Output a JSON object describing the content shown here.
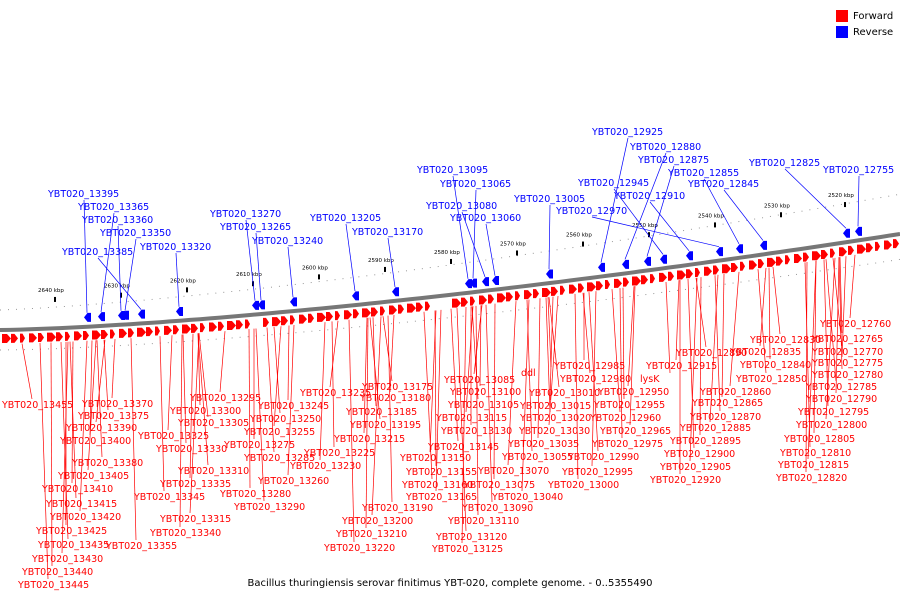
{
  "legend": {
    "forward_label": "Forward",
    "reverse_label": "Reverse",
    "forward_color": "#ff0000",
    "reverse_color": "#0000ff"
  },
  "caption": "Bacillus thuringiensis serovar finitimus YBT-020, complete genome. - 0..5355490",
  "scale": {
    "tick_labels": [
      "2640 kbp",
      "2630 kbp",
      "2620 kbp",
      "2610 kbp",
      "2600 kbp",
      "2590 kbp",
      "2580 kbp",
      "2570 kbp",
      "2560 kbp",
      "2550 kbp",
      "2540 kbp",
      "2530 kbp",
      "2520 kbp"
    ]
  },
  "reverse_labels": [
    "YBT020_13395",
    "YBT020_13365",
    "YBT020_13360",
    "YBT020_13350",
    "YBT020_13385",
    "YBT020_13320",
    "YBT020_13270",
    "YBT020_13265",
    "YBT020_13240",
    "YBT020_13205",
    "YBT020_13170",
    "YBT020_13095",
    "YBT020_13065",
    "YBT020_13080",
    "YBT020_13060",
    "YBT020_13005",
    "YBT020_12925",
    "YBT020_12880",
    "YBT020_12875",
    "YBT020_12945",
    "YBT020_12910",
    "YBT020_12970",
    "YBT020_12855",
    "YBT020_12845",
    "YBT020_12825",
    "YBT020_12755"
  ],
  "forward_labels": [
    "YBT020_13455",
    "YBT020_13370",
    "YBT020_13375",
    "YBT020_13390",
    "YBT020_13400",
    "YBT020_13380",
    "YBT020_13405",
    "YBT020_13410",
    "YBT020_13415",
    "YBT020_13420",
    "YBT020_13425",
    "YBT020_13435",
    "YBT020_13430",
    "YBT020_13440",
    "YBT020_13445",
    "YBT020_13295",
    "YBT020_13300",
    "YBT020_13305",
    "YBT020_13325",
    "YBT020_13330",
    "YBT020_13310",
    "YBT020_13335",
    "YBT020_13345",
    "YBT020_13315",
    "YBT020_13340",
    "YBT020_13355",
    "YBT020_13235",
    "YBT020_13245",
    "YBT020_13250",
    "YBT020_13255",
    "YBT020_13275",
    "YBT020_13285",
    "YBT020_13260",
    "YBT020_13280",
    "YBT020_13290",
    "YBT020_13230",
    "YBT020_13225",
    "YBT020_13175",
    "YBT020_13180",
    "YBT020_13185",
    "YBT020_13195",
    "YBT020_13215",
    "YBT020_13190",
    "YBT020_13200",
    "YBT020_13210",
    "YBT020_13220",
    "YBT020_13085",
    "YBT020_13100",
    "YBT020_13105",
    "YBT020_13115",
    "YBT020_13130",
    "YBT020_13145",
    "YBT020_13150",
    "YBT020_13155",
    "YBT020_13160",
    "YBT020_13165",
    "YBT020_13110",
    "YBT020_13120",
    "YBT020_13125",
    "ddl",
    "YBT020_13010",
    "YBT020_13015",
    "YBT020_13020",
    "YBT020_13030",
    "YBT020_13035",
    "YBT020_13055",
    "YBT020_13070",
    "YBT020_13075",
    "YBT020_13090",
    "YBT020_13040",
    "YBT020_12985",
    "YBT020_12980",
    "YBT020_12950",
    "YBT020_12955",
    "YBT020_12960",
    "YBT020_12965",
    "YBT020_12975",
    "YBT020_12990",
    "YBT020_12995",
    "YBT020_13000",
    "YBT020_12890",
    "YBT020_12915",
    "lysK",
    "YBT020_12860",
    "YBT020_12865",
    "YBT020_12870",
    "YBT020_12885",
    "YBT020_12895",
    "YBT020_12900",
    "YBT020_12905",
    "YBT020_12920",
    "YBT020_12830",
    "YBT020_12835",
    "YBT020_12840",
    "YBT020_12850",
    "YBT020_12760",
    "YBT020_12765",
    "YBT020_12770",
    "YBT020_12775",
    "YBT020_12780",
    "YBT020_12785",
    "YBT020_12790",
    "YBT020_12795",
    "YBT020_12800",
    "YBT020_12805",
    "YBT020_12810",
    "YBT020_12815",
    "YBT020_12820"
  ]
}
